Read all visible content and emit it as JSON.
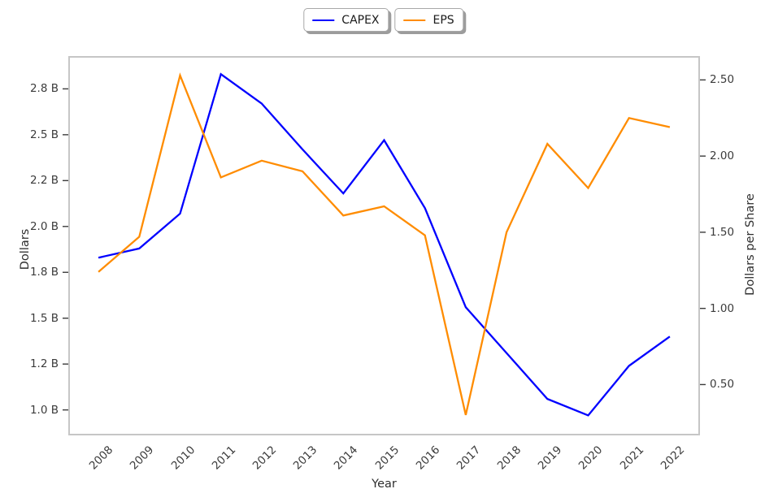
{
  "legend": [
    {
      "label": "CAPEX",
      "color": "#0000ff"
    },
    {
      "label": "EPS",
      "color": "#ff8c00"
    }
  ],
  "chart_data": {
    "type": "line",
    "title": "",
    "xlabel": "Year",
    "grid": false,
    "legend_position": "top-center, two separate shadowed boxes",
    "x": [
      2008,
      2009,
      2010,
      2011,
      2012,
      2013,
      2014,
      2015,
      2016,
      2017,
      2018,
      2019,
      2020,
      2021,
      2022
    ],
    "x_tick_labels": [
      "2008",
      "2009",
      "2010",
      "2011",
      "2012",
      "2013",
      "2014",
      "2015",
      "2016",
      "2017",
      "2018",
      "2019",
      "2020",
      "2021",
      "2022"
    ],
    "xlim": [
      2007.3,
      2022.7
    ],
    "series": [
      {
        "name": "CAPEX",
        "axis": "left",
        "color": "#0000ff",
        "values_unit": "billions of dollars",
        "values": [
          1.83,
          1.88,
          2.07,
          2.83,
          2.67,
          2.42,
          2.18,
          2.47,
          2.1,
          1.56,
          1.31,
          1.06,
          0.97,
          1.24,
          1.4
        ]
      },
      {
        "name": "EPS",
        "axis": "right",
        "color": "#ff8c00",
        "values_unit": "dollars per share",
        "values": [
          1.24,
          1.47,
          2.53,
          1.86,
          1.97,
          1.9,
          1.61,
          1.67,
          1.48,
          0.3,
          1.5,
          2.08,
          1.79,
          2.25,
          2.19
        ]
      }
    ],
    "left_axis": {
      "label": "Dollars",
      "ylim": [
        0.87,
        2.92
      ],
      "ticks": [
        {
          "value": 2.75,
          "label": "2.8 B"
        },
        {
          "value": 2.5,
          "label": "2.5 B"
        },
        {
          "value": 2.25,
          "label": "2.2 B"
        },
        {
          "value": 2.0,
          "label": "2.0 B"
        },
        {
          "value": 1.75,
          "label": "1.8 B"
        },
        {
          "value": 1.5,
          "label": "1.5 B"
        },
        {
          "value": 1.25,
          "label": "1.2 B"
        },
        {
          "value": 1.0,
          "label": "1.0 B"
        }
      ]
    },
    "right_axis": {
      "label": "Dollars per Share",
      "ylim": [
        0.177,
        2.646
      ],
      "ticks": [
        {
          "value": 2.5,
          "label": "2.50"
        },
        {
          "value": 2.0,
          "label": "2.00"
        },
        {
          "value": 1.5,
          "label": "1.50"
        },
        {
          "value": 1.0,
          "label": "1.00"
        },
        {
          "value": 0.5,
          "label": "0.50"
        }
      ]
    }
  }
}
